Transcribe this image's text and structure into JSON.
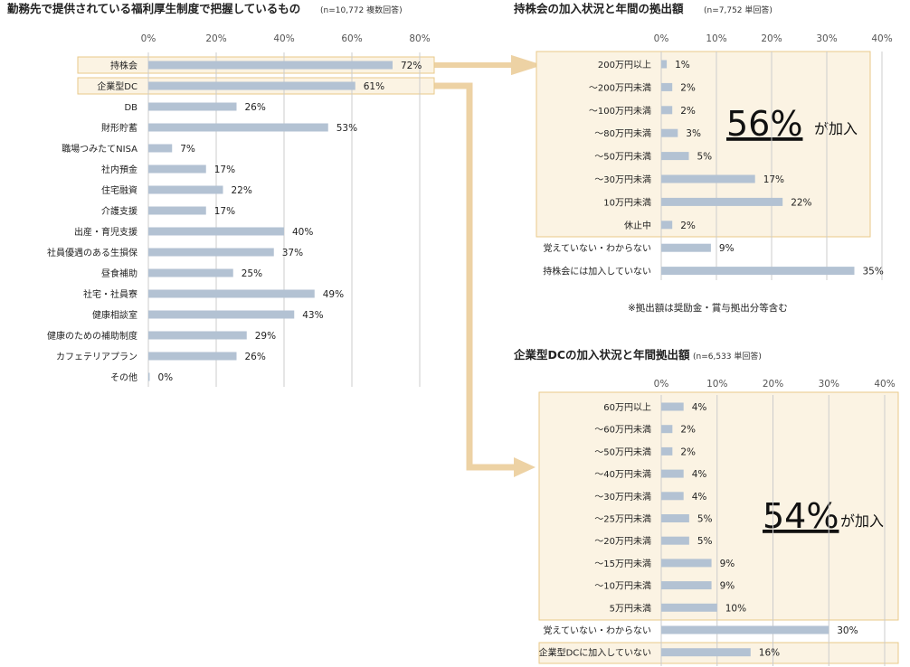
{
  "colors": {
    "bar": "#b3c2d3",
    "highlight_border": "#e8c98a",
    "highlight_fill": "#fbf3e3",
    "arrow": "#edd2a4",
    "grid": "#cccccc"
  },
  "chart_data": [
    {
      "id": "benefits",
      "type": "bar",
      "orientation": "horizontal",
      "title": "勤務先で提供されている福利厚生制度で把握しているもの",
      "subtitle": "(n=10,772 複数回答)",
      "ticks": [
        "0%",
        "20%",
        "40%",
        "60%",
        "80%"
      ],
      "xlim": [
        0,
        80
      ],
      "categories": [
        "持株会",
        "企業型DC",
        "DB",
        "財形貯蓄",
        "職場つみたてNISA",
        "社内預金",
        "住宅融資",
        "介護支援",
        "出産・育児支援",
        "社員優遇のある生損保",
        "昼食補助",
        "社宅・社員寮",
        "健康相談室",
        "健康のための補助制度",
        "カフェテリアプラン",
        "その他"
      ],
      "values": [
        72,
        61,
        26,
        53,
        7,
        17,
        22,
        17,
        40,
        37,
        25,
        49,
        43,
        29,
        26,
        0
      ],
      "labels": [
        "72%",
        "61%",
        "26%",
        "53%",
        "7%",
        "17%",
        "22%",
        "17%",
        "40%",
        "37%",
        "25%",
        "49%",
        "43%",
        "29%",
        "26%",
        "0%"
      ],
      "highlighted": [
        "持株会",
        "企業型DC"
      ]
    },
    {
      "id": "esop",
      "type": "bar",
      "orientation": "horizontal",
      "title": "持株会の加入状況と年間の拠出額",
      "subtitle": "(n=7,752 単回答)",
      "ticks": [
        "0%",
        "10%",
        "20%",
        "30%",
        "40%"
      ],
      "xlim": [
        0,
        40
      ],
      "categories": [
        "200万円以上",
        "～200万円未満",
        "～100万円未満",
        "～80万円未満",
        "～50万円未満",
        "～30万円未満",
        "10万円未満",
        "休止中",
        "覚えていない・わからない",
        "持株会には加入していない"
      ],
      "values": [
        1,
        2,
        2,
        3,
        5,
        17,
        22,
        2,
        9,
        35
      ],
      "labels": [
        "1%",
        "2%",
        "2%",
        "3%",
        "5%",
        "17%",
        "22%",
        "2%",
        "9%",
        "35%"
      ],
      "callout_value": "56%",
      "callout_suffix": "が加入",
      "note": "※拠出額は奨励金・賞与拠出分等含む"
    },
    {
      "id": "dc",
      "type": "bar",
      "orientation": "horizontal",
      "title": "企業型DCの加入状況と年間拠出額",
      "subtitle": "(n=6,533 単回答)",
      "ticks": [
        "0%",
        "10%",
        "20%",
        "30%",
        "40%"
      ],
      "xlim": [
        0,
        40
      ],
      "categories": [
        "60万円以上",
        "～60万円未満",
        "～50万円未満",
        "～40万円未満",
        "～30万円未満",
        "～25万円未満",
        "～20万円未満",
        "～15万円未満",
        "～10万円未満",
        "5万円未満",
        "覚えていない・わからない",
        "企業型DCに加入していない"
      ],
      "values": [
        4,
        2,
        2,
        4,
        4,
        5,
        5,
        9,
        9,
        10,
        30,
        16
      ],
      "labels": [
        "4%",
        "2%",
        "2%",
        "4%",
        "4%",
        "5%",
        "5%",
        "9%",
        "9%",
        "10%",
        "30%",
        "16%"
      ],
      "callout_value": "54%",
      "callout_suffix": "が加入"
    }
  ]
}
